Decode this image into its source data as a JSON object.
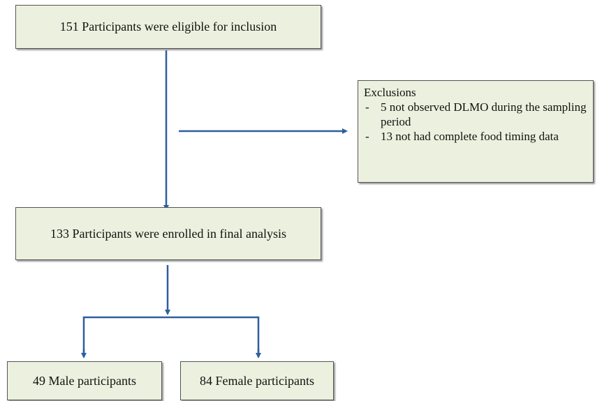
{
  "nodes": [
    {
      "label": "151 Participants were eligible for inclusion"
    },
    {
      "label": "133 Participants were enrolled in final analysis"
    },
    {
      "label": "49 Male participants"
    },
    {
      "label": "84 Female participants"
    }
  ],
  "exclusions": {
    "title": "Exclusions",
    "items": [
      "5 not observed DLMO during the sampling period",
      "13 not had complete food timing data"
    ]
  }
}
